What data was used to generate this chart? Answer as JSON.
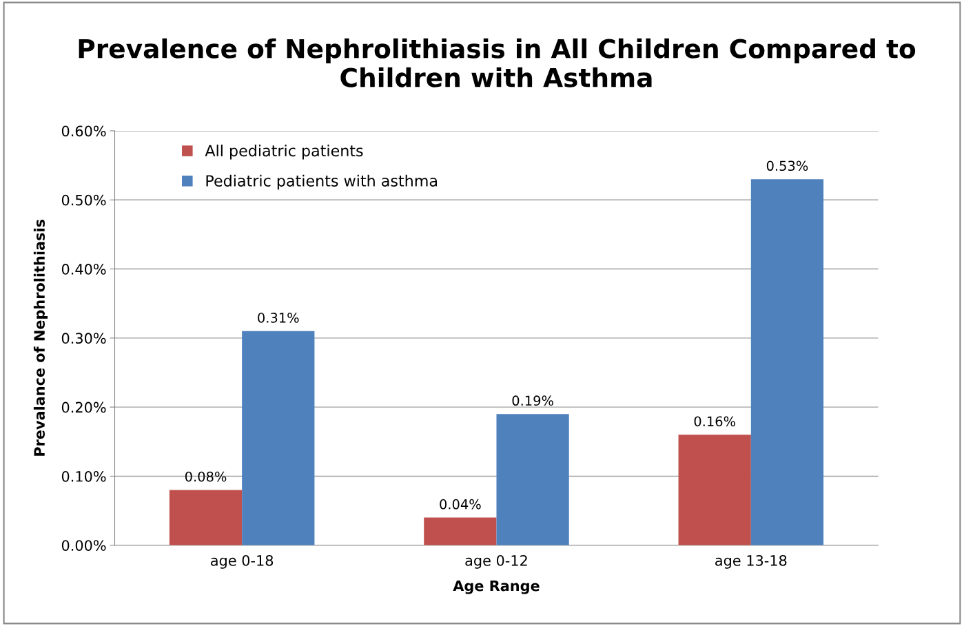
{
  "chart_data": {
    "type": "bar",
    "title": "Prevalence of Nephrolithiasis in All Children Compared to Children with Asthma",
    "xlabel": "Age Range",
    "ylabel": "Prevalance of Nephrolithiasis",
    "categories": [
      "age 0-18",
      "age 0-12",
      "age 13-18"
    ],
    "series": [
      {
        "name": "All pediatric patients",
        "color": "#c0504d",
        "values": [
          0.08,
          0.04,
          0.16
        ],
        "value_labels": [
          "0.08%",
          "0.04%",
          "0.16%"
        ]
      },
      {
        "name": "Pediatric patients with asthma",
        "color": "#4f81bd",
        "values": [
          0.31,
          0.19,
          0.53
        ],
        "value_labels": [
          "0.31%",
          "0.19%",
          "0.53%"
        ]
      }
    ],
    "ylim": [
      0,
      0.6
    ],
    "yticks": [
      {
        "value": 0,
        "label": "0.00%"
      },
      {
        "value": 0.1,
        "label": "0.10%"
      },
      {
        "value": 0.2,
        "label": "0.20%"
      },
      {
        "value": 0.3,
        "label": "0.30%"
      },
      {
        "value": 0.4,
        "label": "0.40%"
      },
      {
        "value": 0.5,
        "label": "0.50%"
      },
      {
        "value": 0.6,
        "label": "0.60%"
      }
    ],
    "grid": "y",
    "legend": "top left"
  }
}
